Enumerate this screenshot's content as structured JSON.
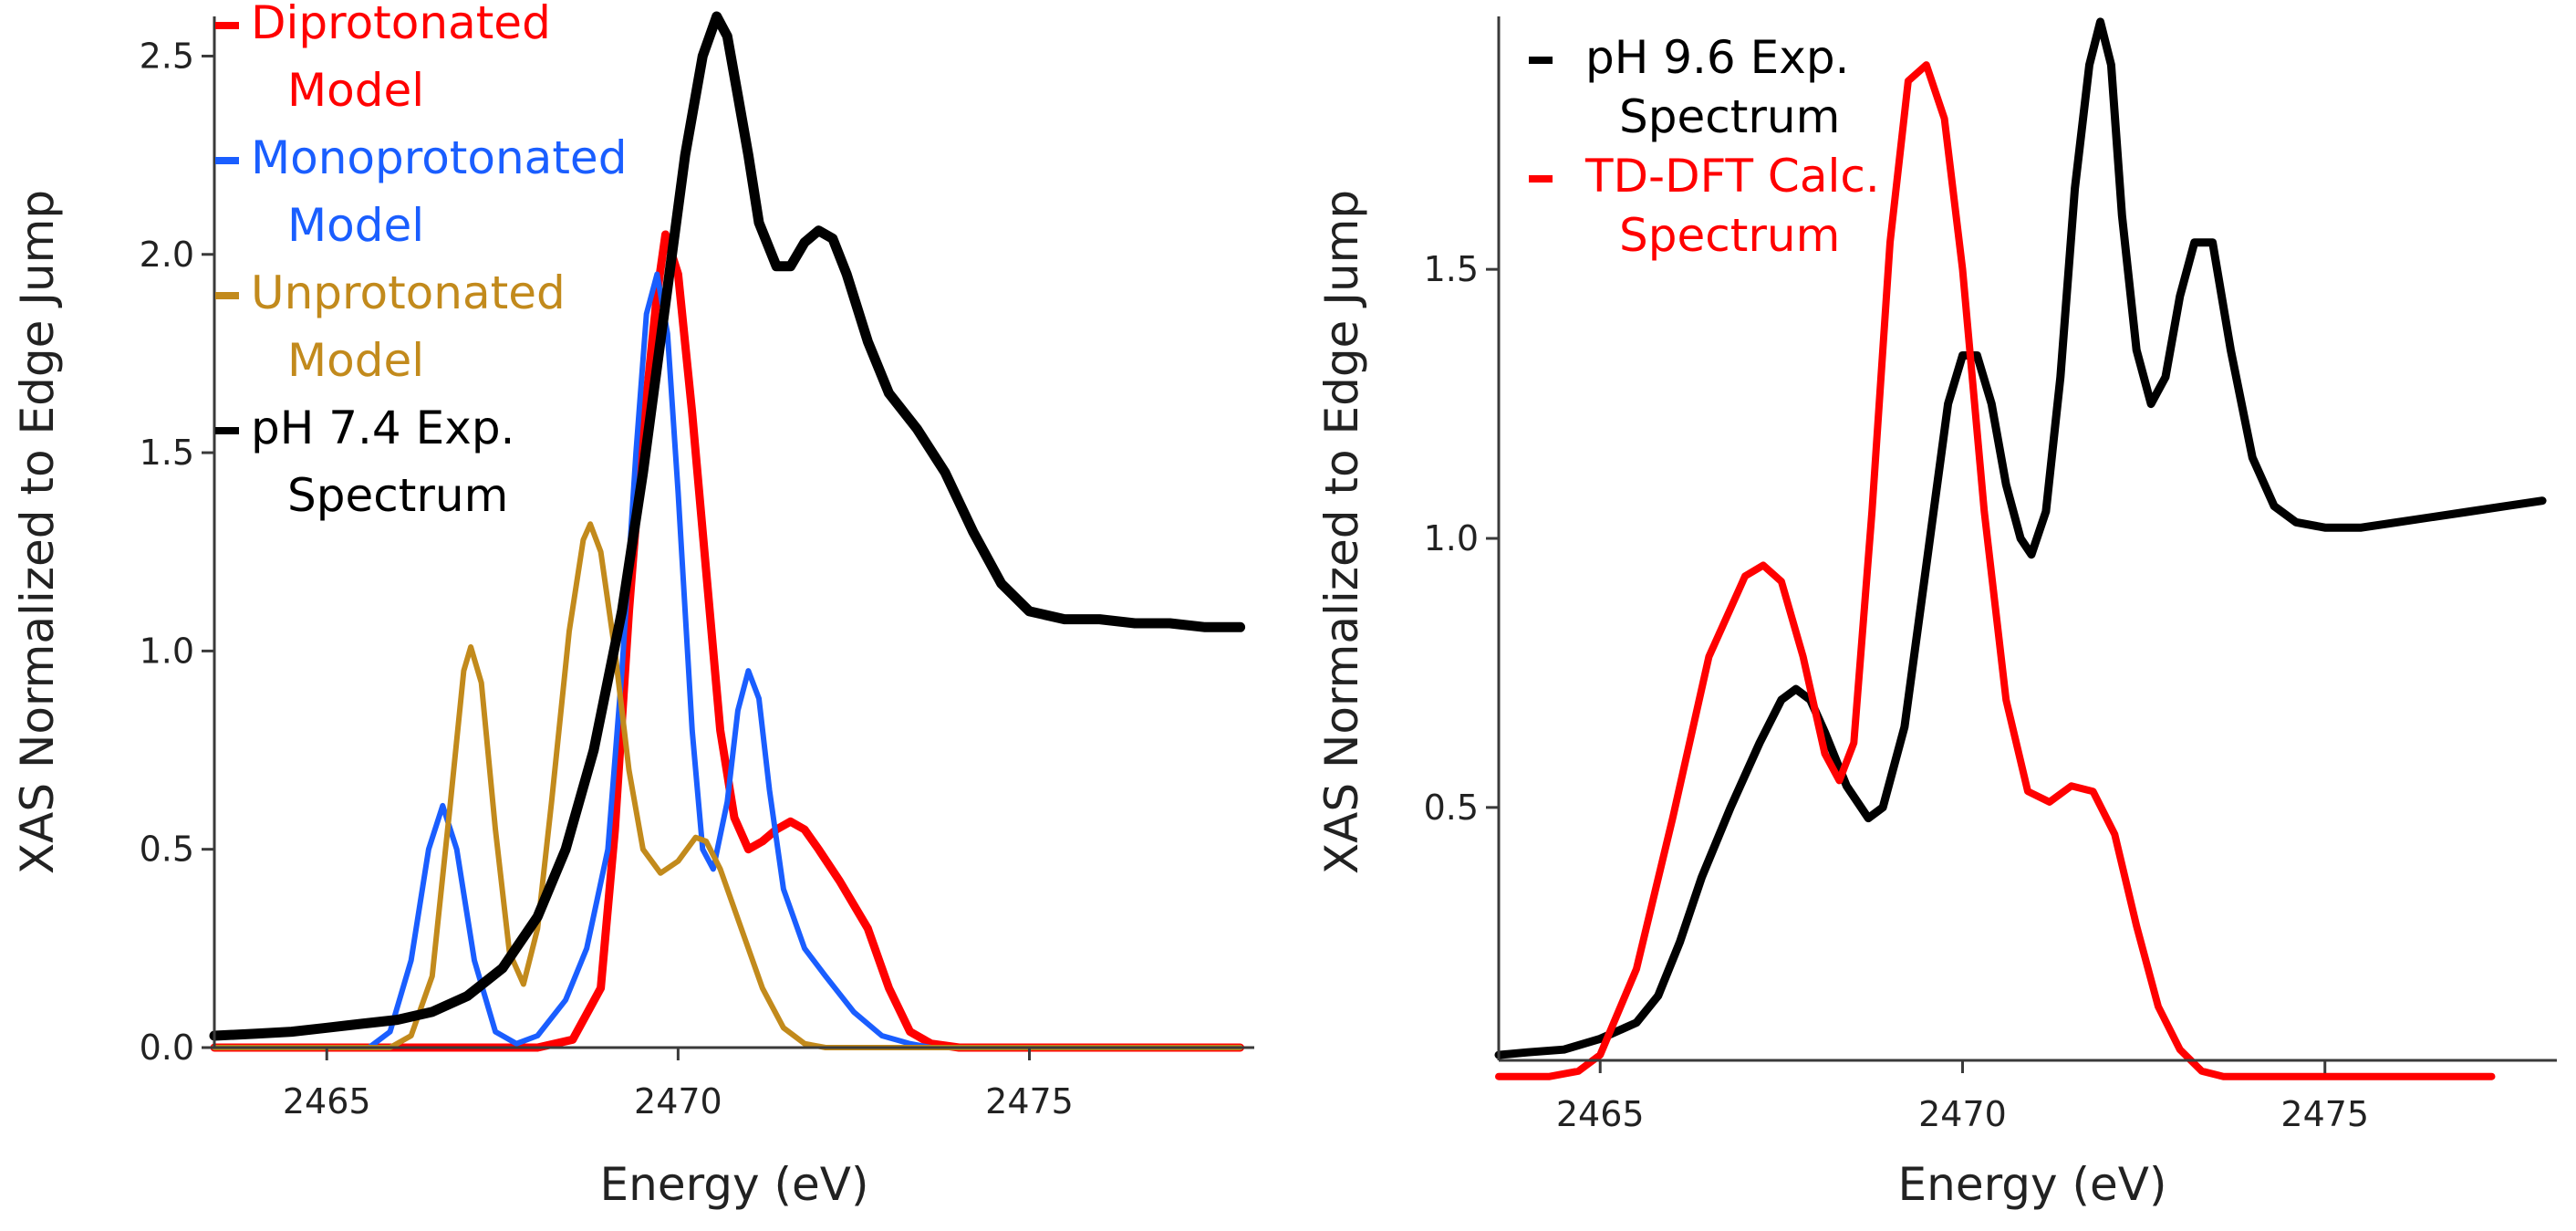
{
  "chart_data": [
    {
      "type": "line",
      "xlabel": "Energy (eV)",
      "ylabel": "XAS Normalized to Edge Jump",
      "xlim": [
        2463.4,
        2478.2
      ],
      "ylim": [
        0,
        2.6
      ],
      "xticks": [
        2465,
        2470,
        2475
      ],
      "yticks": [
        0.0,
        0.5,
        1.0,
        1.5,
        2.0,
        2.5
      ],
      "ytick_labels": [
        "0.0",
        "0.5",
        "1.0",
        "1.5",
        "2.0",
        "2.5"
      ],
      "xtick_labels": [
        "2465",
        "2470",
        "2475"
      ],
      "grid": false,
      "legend_position": "top-left",
      "series": [
        {
          "name": "Diprotonated Model",
          "legend_lines": [
            "Diprotonated",
            "Model"
          ],
          "color": "#ff0000",
          "width": 9,
          "points": [
            [
              2463.4,
              0
            ],
            [
              2468.0,
              0
            ],
            [
              2468.5,
              0.02
            ],
            [
              2468.9,
              0.15
            ],
            [
              2469.1,
              0.55
            ],
            [
              2469.3,
              1.1
            ],
            [
              2469.5,
              1.55
            ],
            [
              2469.7,
              1.9
            ],
            [
              2469.82,
              2.05
            ],
            [
              2470.0,
              1.95
            ],
            [
              2470.2,
              1.6
            ],
            [
              2470.4,
              1.2
            ],
            [
              2470.6,
              0.8
            ],
            [
              2470.8,
              0.58
            ],
            [
              2471.0,
              0.5
            ],
            [
              2471.2,
              0.52
            ],
            [
              2471.4,
              0.55
            ],
            [
              2471.6,
              0.57
            ],
            [
              2471.8,
              0.55
            ],
            [
              2472.0,
              0.5
            ],
            [
              2472.3,
              0.42
            ],
            [
              2472.7,
              0.3
            ],
            [
              2473.0,
              0.15
            ],
            [
              2473.3,
              0.04
            ],
            [
              2473.6,
              0.01
            ],
            [
              2474.0,
              0
            ],
            [
              2478.0,
              0
            ]
          ]
        },
        {
          "name": "Monoprotonated Model",
          "legend_lines": [
            "Monoprotonated",
            "Model"
          ],
          "color": "#1a5eff",
          "width": 6,
          "points": [
            [
              2463.4,
              0
            ],
            [
              2465.6,
              0
            ],
            [
              2465.9,
              0.04
            ],
            [
              2466.2,
              0.22
            ],
            [
              2466.45,
              0.5
            ],
            [
              2466.65,
              0.61
            ],
            [
              2466.85,
              0.5
            ],
            [
              2467.1,
              0.22
            ],
            [
              2467.4,
              0.04
            ],
            [
              2467.7,
              0.01
            ],
            [
              2468.0,
              0.03
            ],
            [
              2468.4,
              0.12
            ],
            [
              2468.7,
              0.25
            ],
            [
              2469.0,
              0.5
            ],
            [
              2469.2,
              0.95
            ],
            [
              2469.4,
              1.5
            ],
            [
              2469.55,
              1.85
            ],
            [
              2469.7,
              1.95
            ],
            [
              2469.85,
              1.8
            ],
            [
              2470.0,
              1.4
            ],
            [
              2470.2,
              0.8
            ],
            [
              2470.35,
              0.5
            ],
            [
              2470.5,
              0.45
            ],
            [
              2470.7,
              0.62
            ],
            [
              2470.85,
              0.85
            ],
            [
              2471.0,
              0.95
            ],
            [
              2471.15,
              0.88
            ],
            [
              2471.3,
              0.65
            ],
            [
              2471.5,
              0.4
            ],
            [
              2471.8,
              0.25
            ],
            [
              2472.1,
              0.18
            ],
            [
              2472.5,
              0.09
            ],
            [
              2472.9,
              0.03
            ],
            [
              2473.3,
              0.01
            ],
            [
              2473.6,
              0
            ],
            [
              2478.0,
              0
            ]
          ]
        },
        {
          "name": "Unprotonated Model",
          "legend_lines": [
            "Unprotonated",
            "Model"
          ],
          "color": "#c28a1c",
          "width": 6,
          "points": [
            [
              2463.4,
              0
            ],
            [
              2465.9,
              0
            ],
            [
              2466.2,
              0.03
            ],
            [
              2466.5,
              0.18
            ],
            [
              2466.75,
              0.6
            ],
            [
              2466.95,
              0.95
            ],
            [
              2467.05,
              1.01
            ],
            [
              2467.2,
              0.92
            ],
            [
              2467.4,
              0.55
            ],
            [
              2467.6,
              0.24
            ],
            [
              2467.8,
              0.16
            ],
            [
              2468.0,
              0.3
            ],
            [
              2468.2,
              0.62
            ],
            [
              2468.45,
              1.05
            ],
            [
              2468.65,
              1.28
            ],
            [
              2468.75,
              1.32
            ],
            [
              2468.9,
              1.25
            ],
            [
              2469.1,
              1.0
            ],
            [
              2469.3,
              0.7
            ],
            [
              2469.5,
              0.5
            ],
            [
              2469.75,
              0.44
            ],
            [
              2470.0,
              0.47
            ],
            [
              2470.25,
              0.53
            ],
            [
              2470.4,
              0.52
            ],
            [
              2470.6,
              0.45
            ],
            [
              2470.9,
              0.3
            ],
            [
              2471.2,
              0.15
            ],
            [
              2471.5,
              0.05
            ],
            [
              2471.8,
              0.01
            ],
            [
              2472.1,
              0
            ],
            [
              2478.0,
              0
            ]
          ]
        },
        {
          "name": "pH 7.4 Exp. Spectrum",
          "legend_lines": [
            "pH 7.4 Exp.",
            "Spectrum"
          ],
          "color": "#000000",
          "width": 11,
          "points": [
            [
              2463.4,
              0.03
            ],
            [
              2464.0,
              0.035
            ],
            [
              2464.5,
              0.04
            ],
            [
              2465.0,
              0.05
            ],
            [
              2465.5,
              0.06
            ],
            [
              2466.0,
              0.07
            ],
            [
              2466.5,
              0.09
            ],
            [
              2467.0,
              0.13
            ],
            [
              2467.5,
              0.2
            ],
            [
              2468.0,
              0.33
            ],
            [
              2468.4,
              0.5
            ],
            [
              2468.8,
              0.75
            ],
            [
              2469.2,
              1.1
            ],
            [
              2469.5,
              1.45
            ],
            [
              2469.8,
              1.85
            ],
            [
              2470.1,
              2.25
            ],
            [
              2470.35,
              2.5
            ],
            [
              2470.55,
              2.6
            ],
            [
              2470.7,
              2.55
            ],
            [
              2470.85,
              2.4
            ],
            [
              2471.0,
              2.25
            ],
            [
              2471.15,
              2.08
            ],
            [
              2471.4,
              1.97
            ],
            [
              2471.6,
              1.97
            ],
            [
              2471.8,
              2.03
            ],
            [
              2472.0,
              2.06
            ],
            [
              2472.2,
              2.04
            ],
            [
              2472.4,
              1.95
            ],
            [
              2472.7,
              1.78
            ],
            [
              2473.0,
              1.65
            ],
            [
              2473.4,
              1.56
            ],
            [
              2473.8,
              1.45
            ],
            [
              2474.2,
              1.3
            ],
            [
              2474.6,
              1.17
            ],
            [
              2475.0,
              1.1
            ],
            [
              2475.5,
              1.08
            ],
            [
              2476.0,
              1.08
            ],
            [
              2476.5,
              1.07
            ],
            [
              2477.0,
              1.07
            ],
            [
              2477.5,
              1.06
            ],
            [
              2478.0,
              1.06
            ]
          ]
        }
      ]
    },
    {
      "type": "line",
      "xlabel": "Energy (eV)",
      "ylabel": "XAS Normalized to Edge Jump",
      "xlim": [
        2463.6,
        2478.2
      ],
      "ylim": [
        0.03,
        1.97
      ],
      "xticks": [
        2465,
        2470,
        2475
      ],
      "yticks": [
        0.5,
        1.0,
        1.5
      ],
      "ytick_labels": [
        "0.5",
        "1.0",
        "1.5"
      ],
      "xtick_labels": [
        "2465",
        "2470",
        "2475"
      ],
      "grid": false,
      "legend_position": "top-left",
      "series": [
        {
          "name": "pH 9.6 Exp. Spectrum",
          "legend_lines": [
            "pH 9.6 Exp.",
            "Spectrum"
          ],
          "color": "#000000",
          "width": 9,
          "points": [
            [
              2463.6,
              0.04
            ],
            [
              2464.0,
              0.045
            ],
            [
              2464.5,
              0.05
            ],
            [
              2465.0,
              0.07
            ],
            [
              2465.5,
              0.1
            ],
            [
              2465.8,
              0.15
            ],
            [
              2466.1,
              0.25
            ],
            [
              2466.4,
              0.37
            ],
            [
              2466.8,
              0.5
            ],
            [
              2467.2,
              0.62
            ],
            [
              2467.5,
              0.7
            ],
            [
              2467.7,
              0.72
            ],
            [
              2467.9,
              0.7
            ],
            [
              2468.1,
              0.64
            ],
            [
              2468.4,
              0.54
            ],
            [
              2468.7,
              0.48
            ],
            [
              2468.9,
              0.5
            ],
            [
              2469.2,
              0.65
            ],
            [
              2469.5,
              0.95
            ],
            [
              2469.8,
              1.25
            ],
            [
              2470.0,
              1.34
            ],
            [
              2470.2,
              1.34
            ],
            [
              2470.4,
              1.25
            ],
            [
              2470.6,
              1.1
            ],
            [
              2470.8,
              1.0
            ],
            [
              2470.95,
              0.97
            ],
            [
              2471.15,
              1.05
            ],
            [
              2471.35,
              1.3
            ],
            [
              2471.55,
              1.65
            ],
            [
              2471.75,
              1.88
            ],
            [
              2471.9,
              1.96
            ],
            [
              2472.05,
              1.88
            ],
            [
              2472.2,
              1.6
            ],
            [
              2472.4,
              1.35
            ],
            [
              2472.6,
              1.25
            ],
            [
              2472.8,
              1.3
            ],
            [
              2473.0,
              1.45
            ],
            [
              2473.2,
              1.55
            ],
            [
              2473.45,
              1.55
            ],
            [
              2473.7,
              1.35
            ],
            [
              2474.0,
              1.15
            ],
            [
              2474.3,
              1.06
            ],
            [
              2474.6,
              1.03
            ],
            [
              2475.0,
              1.02
            ],
            [
              2475.5,
              1.02
            ],
            [
              2476.0,
              1.03
            ],
            [
              2476.5,
              1.04
            ],
            [
              2477.0,
              1.05
            ],
            [
              2477.5,
              1.06
            ],
            [
              2478.0,
              1.07
            ]
          ]
        },
        {
          "name": "TD-DFT Calc. Spectrum",
          "legend_lines": [
            "TD-DFT Calc.",
            "Spectrum"
          ],
          "color": "#ff0000",
          "width": 8,
          "points": [
            [
              2463.6,
              0
            ],
            [
              2464.3,
              0
            ],
            [
              2464.7,
              0.01
            ],
            [
              2465.0,
              0.04
            ],
            [
              2465.5,
              0.2
            ],
            [
              2466.0,
              0.48
            ],
            [
              2466.5,
              0.78
            ],
            [
              2467.0,
              0.93
            ],
            [
              2467.25,
              0.95
            ],
            [
              2467.5,
              0.92
            ],
            [
              2467.8,
              0.78
            ],
            [
              2468.1,
              0.6
            ],
            [
              2468.3,
              0.55
            ],
            [
              2468.5,
              0.62
            ],
            [
              2468.75,
              1.05
            ],
            [
              2469.0,
              1.55
            ],
            [
              2469.25,
              1.85
            ],
            [
              2469.5,
              1.88
            ],
            [
              2469.75,
              1.78
            ],
            [
              2470.0,
              1.5
            ],
            [
              2470.3,
              1.05
            ],
            [
              2470.6,
              0.7
            ],
            [
              2470.9,
              0.53
            ],
            [
              2471.2,
              0.51
            ],
            [
              2471.5,
              0.54
            ],
            [
              2471.8,
              0.53
            ],
            [
              2472.1,
              0.45
            ],
            [
              2472.4,
              0.28
            ],
            [
              2472.7,
              0.13
            ],
            [
              2473.0,
              0.05
            ],
            [
              2473.3,
              0.01
            ],
            [
              2473.6,
              0
            ],
            [
              2477.3,
              0
            ]
          ]
        }
      ]
    }
  ]
}
